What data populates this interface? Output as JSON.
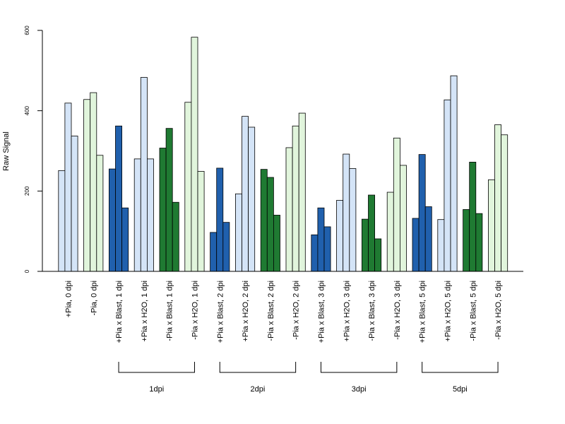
{
  "chart_data": {
    "type": "bar",
    "title": "",
    "xlabel": "",
    "ylabel": "Raw Signal",
    "ylim": [
      0,
      600
    ],
    "yticks": [
      "0",
      "200",
      "400",
      "600"
    ],
    "grid": false,
    "legend": "none",
    "colors": {
      "light_blue": "#d4e4f7",
      "dark_blue": "#2060ad",
      "light_green": "#e1f5dc",
      "dark_green": "#1f7a32",
      "outline": "#000000"
    },
    "categories": [
      {
        "label": "+Pia, 0 dpi",
        "color": "light_blue",
        "values": [
          251,
          419,
          337
        ]
      },
      {
        "label": "-Pia, 0 dpi",
        "color": "light_green",
        "values": [
          428,
          445,
          289
        ]
      },
      {
        "label": "+Pia x Blast, 1 dpi",
        "color": "dark_blue",
        "values": [
          255,
          362,
          158
        ]
      },
      {
        "label": "+Pia x H2O, 1 dpi",
        "color": "light_blue",
        "values": [
          280,
          483,
          280
        ]
      },
      {
        "label": "-Pia x Blast, 1 dpi",
        "color": "dark_green",
        "values": [
          307,
          356,
          172
        ]
      },
      {
        "label": "-Pia x H2O, 1 dpi",
        "color": "light_green",
        "values": [
          421,
          583,
          249
        ]
      },
      {
        "label": "+Pia x Blast, 2 dpi",
        "color": "dark_blue",
        "values": [
          97,
          257,
          122
        ]
      },
      {
        "label": "+Pia x H2O, 2 dpi",
        "color": "light_blue",
        "values": [
          193,
          386,
          359
        ]
      },
      {
        "label": "-Pia x Blast, 2 dpi",
        "color": "dark_green",
        "values": [
          254,
          234,
          140
        ]
      },
      {
        "label": "-Pia x H2O, 2 dpi",
        "color": "light_green",
        "values": [
          308,
          362,
          394
        ]
      },
      {
        "label": "+Pia x Blast, 3 dpi",
        "color": "dark_blue",
        "values": [
          91,
          158,
          111
        ]
      },
      {
        "label": "+Pia x H2O, 3 dpi",
        "color": "light_blue",
        "values": [
          177,
          292,
          256
        ]
      },
      {
        "label": "-Pia x Blast, 3 dpi",
        "color": "dark_green",
        "values": [
          130,
          190,
          81
        ]
      },
      {
        "label": "-Pia x H2O, 3 dpi",
        "color": "light_green",
        "values": [
          197,
          332,
          264
        ]
      },
      {
        "label": "+Pia x Blast, 5 dpi",
        "color": "dark_blue",
        "values": [
          132,
          291,
          161
        ]
      },
      {
        "label": "+Pia x H2O, 5 dpi",
        "color": "light_blue",
        "values": [
          129,
          427,
          487
        ]
      },
      {
        "label": "-Pia x Blast, 5 dpi",
        "color": "dark_green",
        "values": [
          154,
          272,
          144
        ]
      },
      {
        "label": "-Pia x H2O, 5 dpi",
        "color": "light_green",
        "values": [
          228,
          365,
          340
        ]
      }
    ],
    "groups": [
      {
        "label": "1dpi",
        "first": 2,
        "last": 5
      },
      {
        "label": "2dpi",
        "first": 6,
        "last": 9
      },
      {
        "label": "3dpi",
        "first": 10,
        "last": 13
      },
      {
        "label": "5dpi",
        "first": 14,
        "last": 17
      }
    ]
  }
}
